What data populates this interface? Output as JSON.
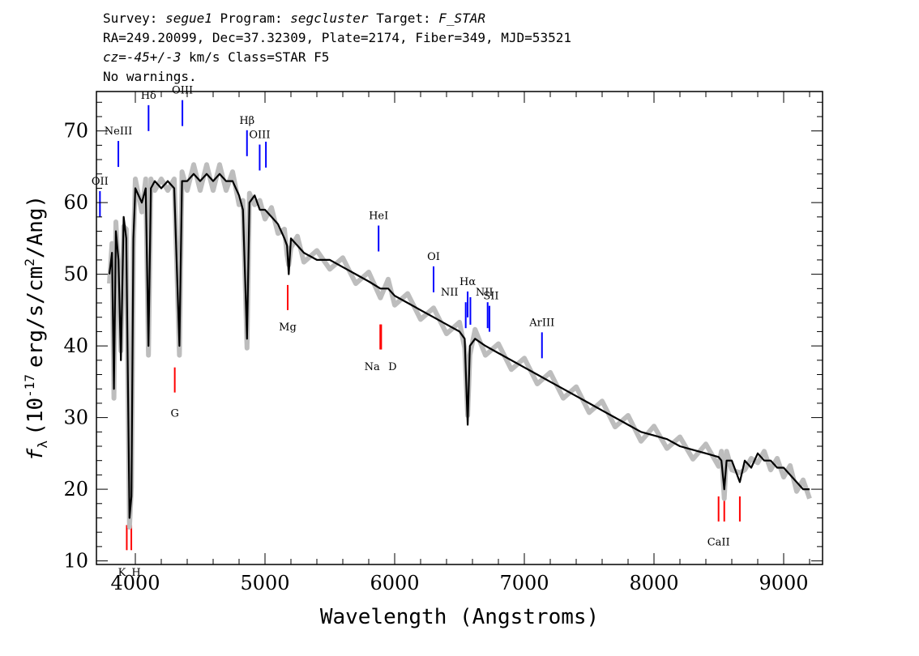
{
  "header": {
    "survey_label": "Survey:",
    "survey_value": "segue1",
    "program_label": "Program:",
    "program_value": "segcluster",
    "target_label": "Target:",
    "target_value": "F_STAR",
    "line2": "RA=249.20099, Dec=37.32309, Plate=2174, Fiber=349, MJD=53521",
    "cz_label": "cz=",
    "cz_value": "-45+/-3",
    "cz_rest": " km/s Class=STAR F5",
    "line4": "No warnings."
  },
  "chart_data": {
    "type": "line",
    "title": "",
    "xlabel": "Wavelength (Angstroms)",
    "ylabel_symbol": "f",
    "ylabel_subscript": "λ",
    "ylabel_text_a": "(10",
    "ylabel_exponent": "-17",
    "ylabel_text_b": "erg/s/cm",
    "ylabel_exponent2": "2",
    "ylabel_text_c": "/Ang)",
    "xlim": [
      3700,
      9300
    ],
    "ylim": [
      9.5,
      75.5
    ],
    "xticks": [
      4000,
      5000,
      6000,
      7000,
      8000,
      9000
    ],
    "yticks": [
      10,
      20,
      30,
      40,
      50,
      60,
      70
    ],
    "grid": false,
    "series": [
      {
        "color": "#000000",
        "x": [
          3800,
          3820,
          3835,
          3850,
          3870,
          3889,
          3910,
          3930,
          3955,
          3970,
          3985,
          4000,
          4050,
          4080,
          4101,
          4120,
          4150,
          4200,
          4250,
          4300,
          4340,
          4360,
          4400,
          4450,
          4500,
          4550,
          4600,
          4650,
          4700,
          4750,
          4800,
          4830,
          4861,
          4880,
          4920,
          4960,
          5000,
          5050,
          5100,
          5150,
          5170,
          5183,
          5200,
          5250,
          5300,
          5400,
          5500,
          5600,
          5700,
          5800,
          5890,
          5950,
          6000,
          6100,
          6200,
          6300,
          6400,
          6500,
          6540,
          6563,
          6580,
          6620,
          6700,
          6800,
          6900,
          7000,
          7100,
          7200,
          7300,
          7400,
          7500,
          7600,
          7700,
          7800,
          7900,
          8000,
          8100,
          8200,
          8300,
          8400,
          8498,
          8520,
          8542,
          8560,
          8600,
          8662,
          8700,
          8750,
          8800,
          8850,
          8900,
          8950,
          9000,
          9050,
          9100,
          9150,
          9200
        ],
        "values": [
          50,
          53,
          34,
          56,
          52,
          38,
          58,
          55,
          16,
          19,
          55,
          62,
          60,
          62,
          40,
          62,
          63,
          62,
          63,
          62,
          40,
          63,
          63,
          64,
          63,
          64,
          63,
          64,
          63,
          63,
          61,
          59,
          41,
          60,
          61,
          59,
          59,
          58,
          57,
          55,
          54,
          50,
          55,
          54,
          53,
          52,
          52,
          51,
          50,
          49,
          48,
          48,
          47,
          46,
          45,
          44,
          43,
          42,
          41,
          29,
          40,
          41,
          40,
          39,
          38,
          37,
          36,
          35,
          34,
          33,
          32,
          31,
          30,
          29,
          28,
          27.5,
          27,
          26,
          25.5,
          25,
          24.5,
          24,
          20,
          24,
          24,
          21,
          24,
          23,
          25,
          24,
          24,
          23,
          23,
          22,
          21,
          20,
          20
        ]
      }
    ],
    "emission_lines_color": "#0000ff",
    "absorption_lines_color": "#ff0000",
    "emission_lines": [
      {
        "label": "OII",
        "x": 3727,
        "y_label": 62.5
      },
      {
        "label": "NeIII",
        "x": 3869,
        "y_label": 69.5
      },
      {
        "label": "Hδ",
        "x": 4102,
        "y_label": 74.5
      },
      {
        "label": "OIII",
        "x": 4363,
        "y_label": 75.2
      },
      {
        "label": "Hβ",
        "x": 4861,
        "y_label": 71.0
      },
      {
        "label": "OIII",
        "x": 4959,
        "y_label": 69.0
      },
      {
        "label": "",
        "x": 5007,
        "y_label": null
      },
      {
        "label": "HeI",
        "x": 5876,
        "y_label": 57.7
      },
      {
        "label": "OI",
        "x": 6300,
        "y_label": 52.0
      },
      {
        "label": "NII",
        "x": 6548,
        "y_label": 47.0
      },
      {
        "label": "Hα",
        "x": 6563,
        "y_label": 48.5
      },
      {
        "label": "",
        "x": 6584,
        "y_label": null
      },
      {
        "label": "NII",
        "x": 6717,
        "y_label": 47.0
      },
      {
        "label": "SII",
        "x": 6731,
        "y_label": 46.5
      },
      {
        "label": "ArIII",
        "x": 7136,
        "y_label": 42.8
      }
    ],
    "absorption_lines": [
      {
        "label": "K",
        "x": 3934,
        "y_label": 9.3
      },
      {
        "label": "H",
        "x": 3969,
        "y_label": 9.3
      },
      {
        "label": "G",
        "x": 4304,
        "y_label": 31.5
      },
      {
        "label": "Mg",
        "x": 5175,
        "y_label": 43.5
      },
      {
        "label": "Na",
        "x": 5889,
        "y_label": 38.0
      },
      {
        "label": "D",
        "x": 5896,
        "y_label": 38.0
      },
      {
        "label": "CaII",
        "x": 8498,
        "y_label": 13.5
      },
      {
        "label": "",
        "x": 8542,
        "y_label": null
      },
      {
        "label": "",
        "x": 8662,
        "y_label": null
      }
    ]
  }
}
